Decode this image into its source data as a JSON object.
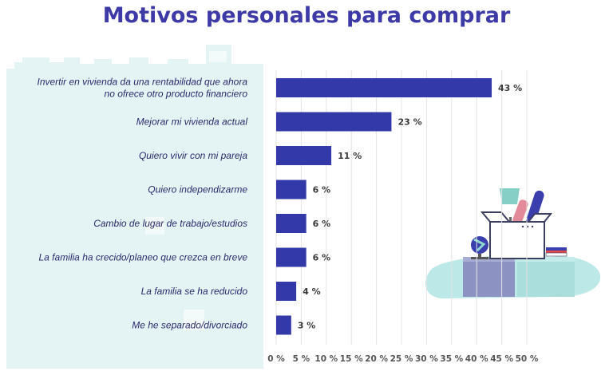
{
  "title": "Motivos personales para comprar",
  "colors": {
    "bar": "#3439aa",
    "panel": "#e4f3f3",
    "title": "#3d3aa8",
    "grid": "#e3e3e3"
  },
  "chart_data": {
    "type": "bar",
    "orientation": "horizontal",
    "title": "Motivos personales para comprar",
    "categories": [
      [
        "Invertir en vivienda da una rentabilidad que ahora",
        "no ofrece otro producto financiero"
      ],
      [
        "Mejorar mi vivienda actual"
      ],
      [
        "Quiero vivir con mi pareja"
      ],
      [
        "Quiero independizarme"
      ],
      [
        "Cambio de lugar de trabajo/estudios"
      ],
      [
        "La familia ha crecido/planeo que crezca en breve"
      ],
      [
        "La familia se ha reducido"
      ],
      [
        "Me he separado/divorciado"
      ]
    ],
    "values": [
      43,
      23,
      11,
      6,
      6,
      6,
      4,
      3
    ],
    "value_labels": [
      "43 %",
      "23 %",
      "11 %",
      "6 %",
      "6 %",
      "6 %",
      "4 %",
      "3 %"
    ],
    "x_ticks": [
      0,
      5,
      10,
      15,
      20,
      25,
      30,
      35,
      40,
      45,
      50
    ],
    "x_tick_labels": [
      "0 %",
      "5 %",
      "10 %",
      "15 %",
      "20 %",
      "25 %",
      "30 %",
      "35 %",
      "40 %",
      "45 %",
      "50 %"
    ],
    "xlim": [
      0,
      50
    ],
    "grid": true,
    "legend": "none"
  }
}
